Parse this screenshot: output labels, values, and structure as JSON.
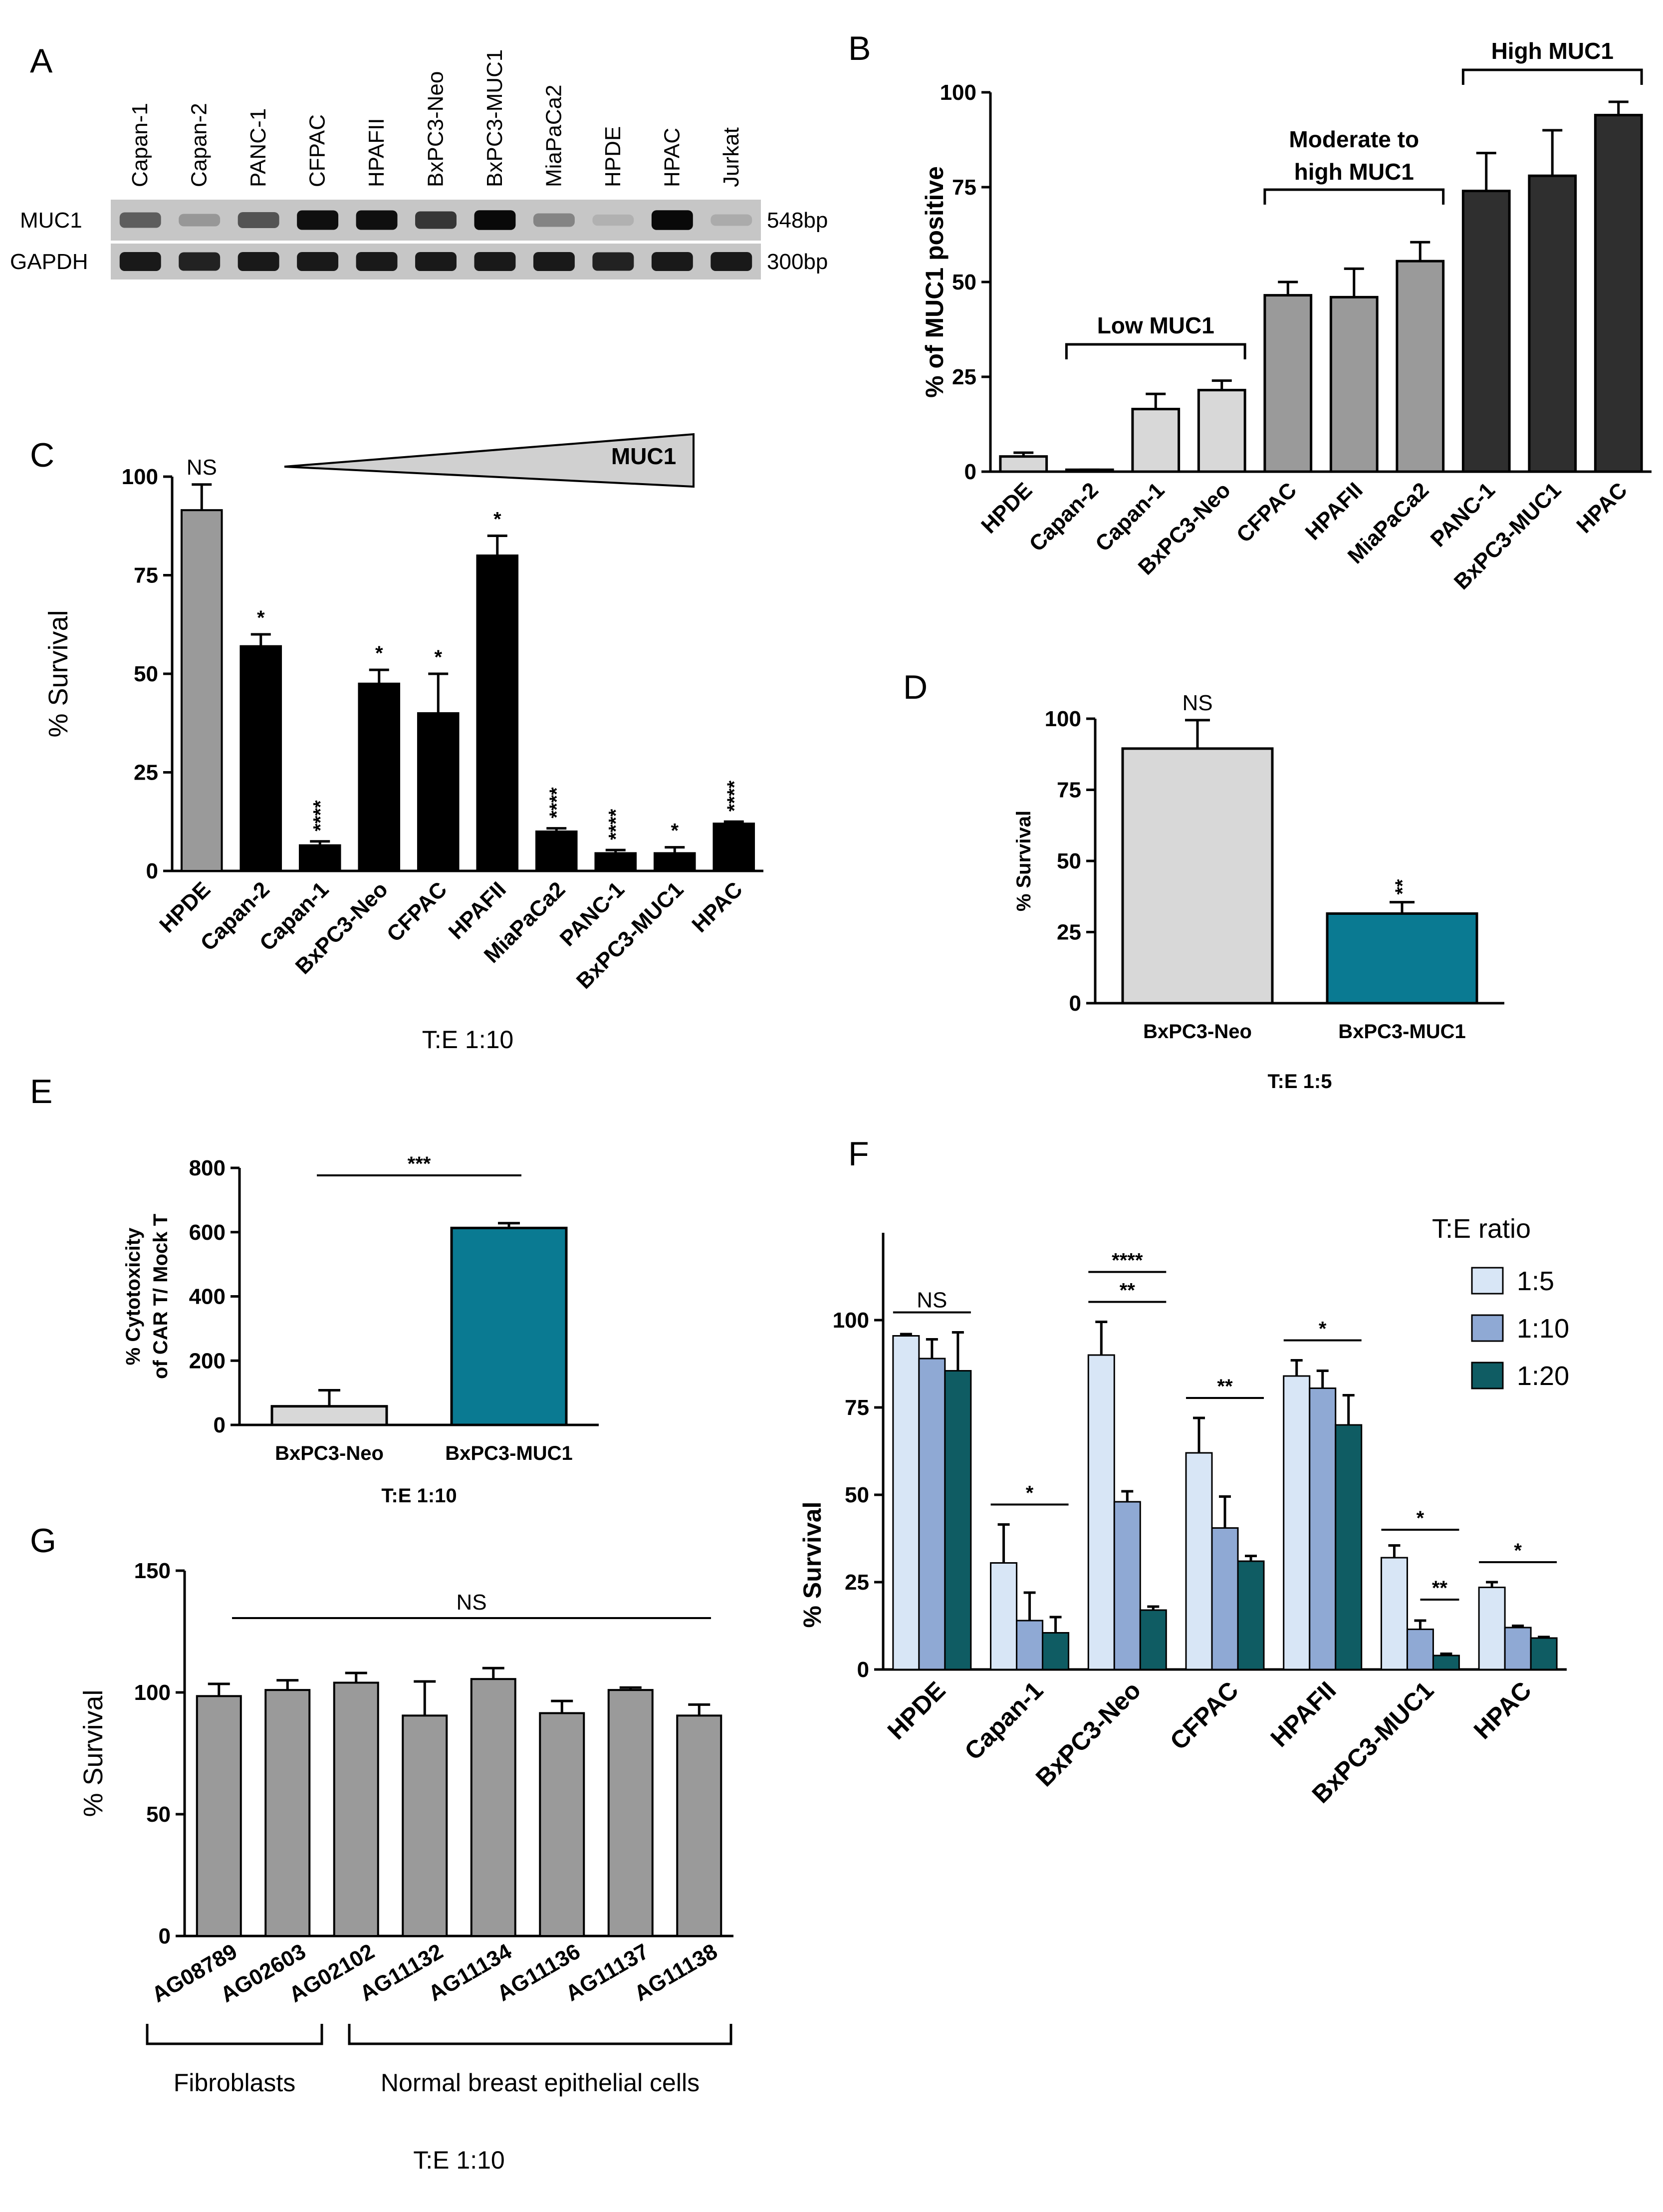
{
  "panels": {
    "A": "A",
    "B": "B",
    "C": "C",
    "D": "D",
    "E": "E",
    "F": "F",
    "G": "G"
  },
  "colors": {
    "black": "#000000",
    "light_gray": "#d8d8d8",
    "mid_gray": "#9a9a9a",
    "dark_gray": "#2f2f2f",
    "teal": "#0a7a92",
    "f_1_5": "#d8e6f6",
    "f_1_10": "#8fa9d4",
    "f_1_20": "#0f5c63"
  },
  "gel": {
    "lanes": [
      "Capan-1",
      "Capan-2",
      "PANC-1",
      "CFPAC",
      "HPAFII",
      "BxPC3-Neo",
      "BxPC3-MUC1",
      "MiaPaCa2",
      "HPDE",
      "HPAC",
      "Jurkat"
    ],
    "rows": [
      {
        "name": "MUC1",
        "size": "548bp",
        "intensity": [
          0.55,
          0.25,
          0.6,
          0.95,
          0.95,
          0.75,
          0.98,
          0.35,
          0.12,
          0.98,
          0.15
        ]
      },
      {
        "name": "GAPDH",
        "size": "300bp",
        "intensity": [
          0.9,
          0.85,
          0.9,
          0.9,
          0.9,
          0.9,
          0.9,
          0.9,
          0.85,
          0.9,
          0.9
        ]
      }
    ]
  },
  "chart_data": [
    {
      "panel": "B",
      "type": "bar",
      "ylabel": "% of MUC1 positive",
      "ylim": [
        0,
        100
      ],
      "yticks": [
        0,
        25,
        50,
        75,
        100
      ],
      "categories": [
        "HPDE",
        "Capan-2",
        "Capan-1",
        "BxPC3-Neo",
        "CFPAC",
        "HPAFII",
        "MiaPaCa2",
        "PANC-1",
        "BxPC3-MUC1",
        "HPAC"
      ],
      "values": [
        4,
        0.5,
        16.5,
        21.5,
        46.5,
        46,
        55.5,
        74,
        78,
        94
      ],
      "errors": [
        1,
        0,
        4,
        2.5,
        3.5,
        7.5,
        5,
        10,
        12,
        3.5
      ],
      "group_colors": [
        "light",
        "light",
        "light",
        "light",
        "mid",
        "mid",
        "mid",
        "dark",
        "dark",
        "dark"
      ],
      "brackets": [
        {
          "label": "Low MUC1",
          "from": 1,
          "to": 3
        },
        {
          "label": "Moderate to",
          "label2": "high MUC1",
          "from": 4,
          "to": 6
        },
        {
          "label": "High MUC1",
          "from": 7,
          "to": 9
        }
      ]
    },
    {
      "panel": "C",
      "type": "bar",
      "ylabel": "% Survival",
      "xlabel": "T:E 1:10",
      "ylim": [
        0,
        100
      ],
      "yticks": [
        0,
        25,
        50,
        75,
        100
      ],
      "categories": [
        "HPDE",
        "Capan-2",
        "Capan-1",
        "BxPC3-Neo",
        "CFPAC",
        "HPAFII",
        "MiaPaCa2",
        "PANC-1",
        "BxPC3-MUC1",
        "HPAC"
      ],
      "values": [
        91.5,
        57,
        6.5,
        47.5,
        40,
        80,
        10,
        4.5,
        4.5,
        12
      ],
      "errors": [
        6.5,
        3,
        1,
        3.5,
        10,
        5,
        0.8,
        0.8,
        1.5,
        0.5
      ],
      "significance": [
        "NS",
        "*",
        "****",
        "*",
        "*",
        "*",
        "****",
        "****",
        "*",
        "****"
      ],
      "gradient_label": "MUC1"
    },
    {
      "panel": "D",
      "type": "bar",
      "ylabel": "% Survival",
      "xlabel": "T:E 1:5",
      "ylim": [
        0,
        100
      ],
      "yticks": [
        0,
        25,
        50,
        75,
        100
      ],
      "categories": [
        "BxPC3-Neo",
        "BxPC3-MUC1"
      ],
      "values": [
        89.5,
        31.5
      ],
      "errors": [
        10,
        4
      ],
      "significance": [
        "NS",
        "**"
      ]
    },
    {
      "panel": "E",
      "type": "bar",
      "ylabel_line1": "% Cytotoxicity",
      "ylabel_line2": "of CAR T/ Mock T",
      "xlabel": "T:E 1:10",
      "ylim": [
        0,
        800
      ],
      "yticks": [
        0,
        200,
        400,
        600,
        800
      ],
      "categories": [
        "BxPC3-Neo",
        "BxPC3-MUC1"
      ],
      "values": [
        58,
        613
      ],
      "errors": [
        50,
        15
      ],
      "significance": "***"
    },
    {
      "panel": "F",
      "type": "bar",
      "ylabel": "% Survival",
      "ylim": [
        0,
        125
      ],
      "yticks": [
        0,
        25,
        50,
        75,
        100
      ],
      "categories": [
        "HPDE",
        "Capan-1",
        "BxPC3-Neo",
        "CFPAC",
        "HPAFII",
        "BxPC3-MUC1",
        "HPAC"
      ],
      "legend_title": "T:E ratio",
      "series": [
        {
          "name": "1:5",
          "values": [
            95.5,
            30.5,
            90,
            62,
            84,
            32,
            23.5
          ],
          "errors": [
            0.5,
            11,
            9.5,
            10,
            4.5,
            3.5,
            1.5
          ]
        },
        {
          "name": "1:10",
          "values": [
            89,
            14,
            48,
            40.5,
            80.5,
            11.5,
            12
          ],
          "errors": [
            5.5,
            8,
            3,
            9,
            5,
            2.5,
            0.5
          ]
        },
        {
          "name": "1:20",
          "values": [
            85.5,
            10.5,
            17,
            31,
            70,
            4,
            9
          ],
          "errors": [
            11,
            4.5,
            1,
            1.5,
            8.5,
            0.5,
            0.3
          ]
        }
      ],
      "significance": [
        {
          "cat": 0,
          "label": "NS",
          "level": 0
        },
        {
          "cat": 1,
          "label": "*",
          "level": 0
        },
        {
          "cat": 2,
          "label": "****",
          "level": 1
        },
        {
          "cat": 2,
          "label": "**",
          "level": 0
        },
        {
          "cat": 3,
          "label": "**",
          "level": 0
        },
        {
          "cat": 4,
          "label": "*",
          "level": 0
        },
        {
          "cat": 5,
          "label": "*",
          "level": 1
        },
        {
          "cat": 5,
          "label": "**",
          "level": 0
        },
        {
          "cat": 6,
          "label": "*",
          "level": 0
        }
      ]
    },
    {
      "panel": "G",
      "type": "bar",
      "ylabel": "% Survival",
      "xlabel": "T:E 1:10",
      "ylim": [
        0,
        150
      ],
      "yticks": [
        0,
        50,
        100,
        150
      ],
      "categories": [
        "AG08789",
        "AG02603",
        "AG02102",
        "AG11132",
        "AG11134",
        "AG11136",
        "AG11137",
        "AG11138"
      ],
      "values": [
        98.5,
        101,
        104,
        90.5,
        105.5,
        91.5,
        101,
        90.5
      ],
      "errors": [
        5,
        4,
        4,
        14,
        4.5,
        5,
        1,
        4.5
      ],
      "significance": "NS",
      "groups": [
        {
          "label": "Fibroblasts",
          "from": 0,
          "to": 1
        },
        {
          "label": "Normal breast epithelial cells",
          "from": 2,
          "to": 7
        }
      ]
    }
  ]
}
